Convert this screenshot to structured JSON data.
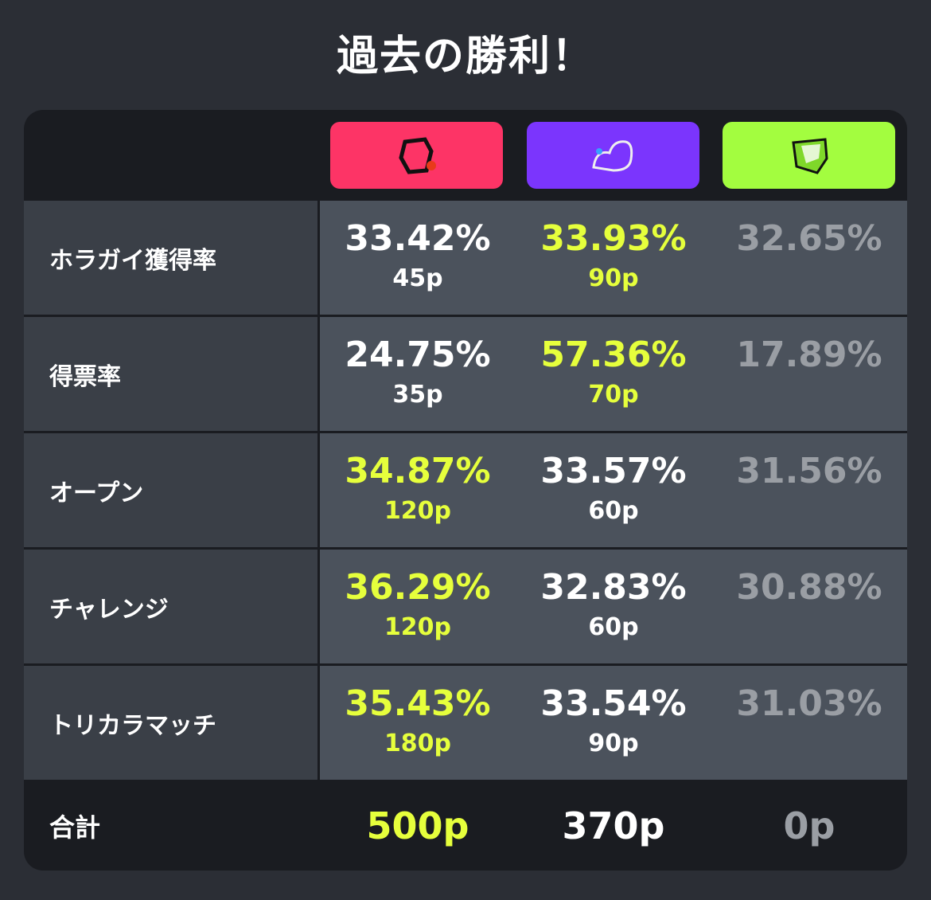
{
  "title": "過去の勝利！",
  "teams": [
    {
      "color": "#fd3466",
      "icon": "team-alpha-emblem-icon"
    },
    {
      "color": "#7b35fd",
      "icon": "team-bravo-emblem-icon"
    },
    {
      "color": "#a3fd3f",
      "icon": "team-charlie-emblem-icon"
    }
  ],
  "colors": {
    "winner": "#e6ff3c",
    "normal": "#ffffff",
    "inactive": "#9a9ea4"
  },
  "rows": [
    {
      "label": "ホラガイ獲得率",
      "cells": [
        {
          "pct": "33.42%",
          "pts": "45p",
          "style": "w"
        },
        {
          "pct": "33.93%",
          "pts": "90p",
          "style": "y"
        },
        {
          "pct": "32.65%",
          "pts": "",
          "style": "g"
        }
      ]
    },
    {
      "label": "得票率",
      "cells": [
        {
          "pct": "24.75%",
          "pts": "35p",
          "style": "w"
        },
        {
          "pct": "57.36%",
          "pts": "70p",
          "style": "y"
        },
        {
          "pct": "17.89%",
          "pts": "",
          "style": "g"
        }
      ]
    },
    {
      "label": "オープン",
      "cells": [
        {
          "pct": "34.87%",
          "pts": "120p",
          "style": "y"
        },
        {
          "pct": "33.57%",
          "pts": "60p",
          "style": "w"
        },
        {
          "pct": "31.56%",
          "pts": "",
          "style": "g"
        }
      ]
    },
    {
      "label": "チャレンジ",
      "cells": [
        {
          "pct": "36.29%",
          "pts": "120p",
          "style": "y"
        },
        {
          "pct": "32.83%",
          "pts": "60p",
          "style": "w"
        },
        {
          "pct": "30.88%",
          "pts": "",
          "style": "g"
        }
      ]
    },
    {
      "label": "トリカラマッチ",
      "cells": [
        {
          "pct": "35.43%",
          "pts": "180p",
          "style": "y"
        },
        {
          "pct": "33.54%",
          "pts": "90p",
          "style": "w"
        },
        {
          "pct": "31.03%",
          "pts": "",
          "style": "g"
        }
      ]
    }
  ],
  "total": {
    "label": "合計",
    "values": [
      {
        "v": "500p",
        "style": "y"
      },
      {
        "v": "370p",
        "style": "w"
      },
      {
        "v": "0p",
        "style": "g"
      }
    ]
  }
}
